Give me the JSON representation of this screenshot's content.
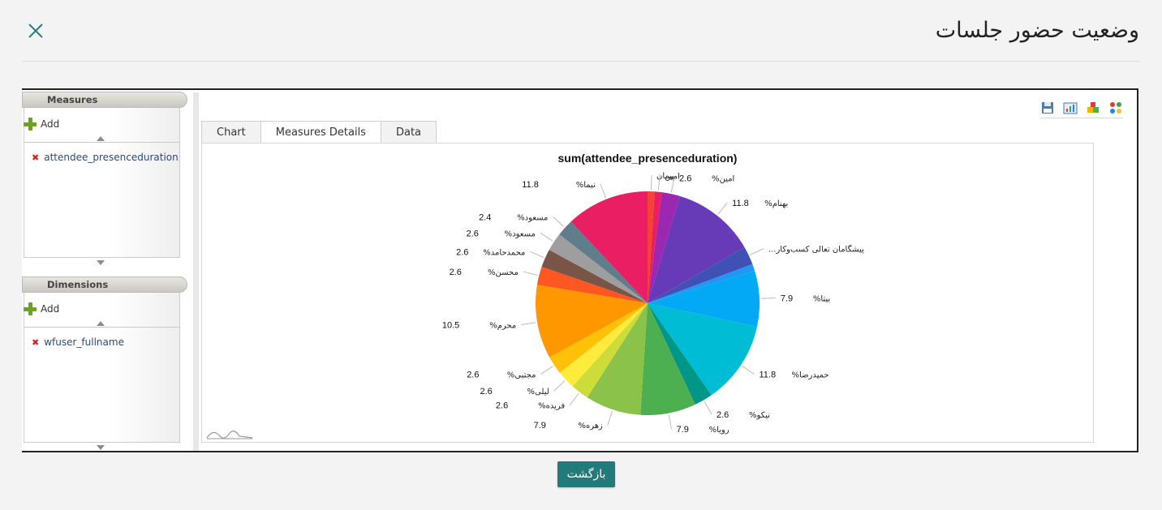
{
  "modal": {
    "title": "وضعیت حضور جلسات",
    "back_label": "بازگشت"
  },
  "left_panel": {
    "measures": {
      "header": "Measures",
      "add_label": "Add",
      "items": [
        "attendee_presenceduration"
      ]
    },
    "dimensions": {
      "header": "Dimensions",
      "add_label": "Add",
      "items": [
        "wfuser_fullname"
      ]
    }
  },
  "tabs": [
    {
      "label": "Chart",
      "active": false
    },
    {
      "label": "Measures Details",
      "active": true
    },
    {
      "label": "Data",
      "active": false
    }
  ],
  "toolbar_icons": [
    "save-icon",
    "export-chart-icon",
    "puzzle-icon",
    "color-palette-icon"
  ],
  "colors": {
    "accent": "#237a7a",
    "close": "#2a7f7f"
  },
  "chart_data": {
    "type": "pie",
    "title": "sum(attendee_presenceduration)",
    "slices": [
      {
        "label": "پیمان",
        "value": 1.0,
        "display": "",
        "color": "#f44336"
      },
      {
        "label": "امین",
        "value": 1.0,
        "display": "",
        "color": "#e91e63"
      },
      {
        "label": "%امین",
        "value": 2.6,
        "display": "2.6",
        "color": "#9c27b0"
      },
      {
        "label": "%بهنام",
        "value": 11.8,
        "display": "11.8",
        "color": "#673ab7"
      },
      {
        "label": "...پیشگامان تعالی کسب‌وکار",
        "value": 2.6,
        "display": "",
        "color": "#3f51b5"
      },
      {
        "label": "",
        "value": 1.0,
        "display": "",
        "color": "#2196f3"
      },
      {
        "label": "%بیتا",
        "value": 7.9,
        "display": "7.9",
        "color": "#03a9f4"
      },
      {
        "label": "%حمیدرضا",
        "value": 11.8,
        "display": "11.8",
        "color": "#00bcd4"
      },
      {
        "label": "%نیکو",
        "value": 2.6,
        "display": "2.6",
        "color": "#009688"
      },
      {
        "label": "%رویا",
        "value": 7.9,
        "display": "7.9",
        "color": "#4caf50"
      },
      {
        "label": "%زهره",
        "value": 7.9,
        "display": "7.9",
        "color": "#8bc34a"
      },
      {
        "label": "%فریده",
        "value": 2.6,
        "display": "2.6",
        "color": "#cddc39"
      },
      {
        "label": "%لیلی",
        "value": 2.6,
        "display": "2.6",
        "color": "#ffeb3b"
      },
      {
        "label": "%مجتبی",
        "value": 2.6,
        "display": "2.6",
        "color": "#ffc107"
      },
      {
        "label": "%محرم",
        "value": 10.5,
        "display": "10.5",
        "color": "#ff9800"
      },
      {
        "label": "%محسن",
        "value": 2.6,
        "display": "2.6",
        "color": "#ff5722"
      },
      {
        "label": "%محمدحامد",
        "value": 2.6,
        "display": "2.6",
        "color": "#795548"
      },
      {
        "label": "%مسعود",
        "value": 2.6,
        "display": "2.6",
        "color": "#9e9e9e"
      },
      {
        "label": "%مسعود",
        "value": 2.4,
        "display": "2.4",
        "color": "#607d8b"
      },
      {
        "label": "%نیما",
        "value": 11.8,
        "display": "11.8",
        "color": "#e91e63"
      }
    ]
  }
}
